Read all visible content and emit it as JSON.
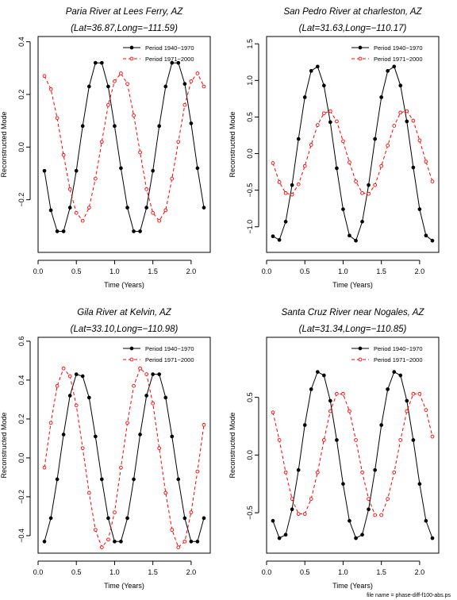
{
  "footer_text": "file name = phase-diff-f100-abs.ps",
  "colors": {
    "series1": "#000000",
    "series2": "#ff0000",
    "axis": "#000000"
  },
  "chart_data": [
    {
      "type": "line",
      "title": "Paria River at Lees Ferry, AZ",
      "subtitle": "(Lat=36.87,Long=−111.59)",
      "xlabel": "Time (Years)",
      "ylabel": "Reconstructed Mode",
      "xlim": [
        0,
        2.25
      ],
      "ylim": [
        -0.4,
        0.42
      ],
      "xticks": [
        0.0,
        0.5,
        1.0,
        1.5,
        2.0
      ],
      "xtick_labels": [
        "0.0",
        "0.5",
        "1.0",
        "1.5",
        "2.0"
      ],
      "yticks": [
        -0.2,
        0.0,
        0.2,
        0.4
      ],
      "ytick_labels": [
        "−0.2",
        "0.0",
        "0.2",
        "0.4"
      ],
      "legend": "top-right",
      "grid": false,
      "x": [
        0.083,
        0.167,
        0.25,
        0.333,
        0.417,
        0.5,
        0.583,
        0.667,
        0.75,
        0.833,
        0.917,
        1.0,
        1.083,
        1.167,
        1.25,
        1.333,
        1.417,
        1.5,
        1.583,
        1.667,
        1.75,
        1.833,
        1.917,
        2.0,
        2.083,
        2.167
      ],
      "series": [
        {
          "name": "Period 1940−1970",
          "style": "solid",
          "marker": "filled-circle",
          "values": [
            -0.09,
            -0.24,
            -0.32,
            -0.32,
            -0.23,
            -0.09,
            0.08,
            0.23,
            0.32,
            0.32,
            0.23,
            0.08,
            -0.08,
            -0.23,
            -0.32,
            -0.32,
            -0.23,
            -0.09,
            0.08,
            0.23,
            0.32,
            0.32,
            0.24,
            0.09,
            -0.08,
            -0.23
          ]
        },
        {
          "name": "Period 1971−2000",
          "style": "dashed",
          "marker": "open-circle",
          "values": [
            0.27,
            0.22,
            0.11,
            -0.03,
            -0.16,
            -0.25,
            -0.28,
            -0.23,
            -0.12,
            0.02,
            0.16,
            0.25,
            0.28,
            0.24,
            0.12,
            -0.02,
            -0.16,
            -0.25,
            -0.28,
            -0.24,
            -0.12,
            0.02,
            0.16,
            0.25,
            0.28,
            0.23
          ]
        }
      ]
    },
    {
      "type": "line",
      "title": "San Pedro River at charleston, AZ",
      "subtitle": "(Lat=31.63,Long=−110.17)",
      "xlabel": "Time (Years)",
      "ylabel": "Reconstructed Mode",
      "xlim": [
        0,
        2.25
      ],
      "ylim": [
        -1.35,
        1.6
      ],
      "xticks": [
        0.0,
        0.5,
        1.0,
        1.5,
        2.0
      ],
      "xtick_labels": [
        "0.0",
        "0.5",
        "1.0",
        "1.5",
        "2.0"
      ],
      "yticks": [
        -1.0,
        -0.5,
        0.0,
        0.5,
        1.0,
        1.5
      ],
      "ytick_labels": [
        "−1.0",
        "−0.5",
        "0.0",
        "0.5",
        "1.0",
        "1.5"
      ],
      "legend": "top-right",
      "grid": false,
      "x": [
        0.083,
        0.167,
        0.25,
        0.333,
        0.417,
        0.5,
        0.583,
        0.667,
        0.75,
        0.833,
        0.917,
        1.0,
        1.083,
        1.167,
        1.25,
        1.333,
        1.417,
        1.5,
        1.583,
        1.667,
        1.75,
        1.833,
        1.917,
        2.0,
        2.083,
        2.167
      ],
      "series": [
        {
          "name": "Period 1940−1970",
          "style": "solid",
          "marker": "filled-circle",
          "values": [
            -1.13,
            -1.18,
            -0.93,
            -0.43,
            0.2,
            0.77,
            1.13,
            1.19,
            0.93,
            0.43,
            -0.2,
            -0.76,
            -1.12,
            -1.19,
            -0.93,
            -0.43,
            0.2,
            0.77,
            1.13,
            1.19,
            0.93,
            0.44,
            -0.19,
            -0.76,
            -1.12,
            -1.19
          ]
        },
        {
          "name": "Period 1971−2000",
          "style": "dashed",
          "marker": "open-circle",
          "values": [
            -0.13,
            -0.39,
            -0.54,
            -0.56,
            -0.42,
            -0.17,
            0.12,
            0.39,
            0.55,
            0.58,
            0.44,
            0.17,
            -0.12,
            -0.38,
            -0.54,
            -0.55,
            -0.43,
            -0.17,
            0.11,
            0.38,
            0.56,
            0.58,
            0.45,
            0.18,
            -0.11,
            -0.38
          ]
        }
      ]
    },
    {
      "type": "line",
      "title": "Gila River at Kelvin, AZ",
      "subtitle": "(Lat=33.10,Long=−110.98)",
      "xlabel": "Time (Years)",
      "ylabel": "Reconstructed Mode",
      "xlim": [
        0,
        2.25
      ],
      "ylim": [
        -0.49,
        0.62
      ],
      "xticks": [
        0.0,
        0.5,
        1.0,
        1.5,
        2.0
      ],
      "xtick_labels": [
        "0.0",
        "0.5",
        "1.0",
        "1.5",
        "2.0"
      ],
      "yticks": [
        -0.4,
        -0.2,
        0.0,
        0.2,
        0.4,
        0.6
      ],
      "ytick_labels": [
        "−0.4",
        "−0.2",
        "0.0",
        "0.2",
        "0.4",
        "0.6"
      ],
      "legend": "top-right",
      "grid": false,
      "x": [
        0.083,
        0.167,
        0.25,
        0.333,
        0.417,
        0.5,
        0.583,
        0.667,
        0.75,
        0.833,
        0.917,
        1.0,
        1.083,
        1.167,
        1.25,
        1.333,
        1.417,
        1.5,
        1.583,
        1.667,
        1.75,
        1.833,
        1.917,
        2.0,
        2.083,
        2.167
      ],
      "series": [
        {
          "name": "Period 1940−1970",
          "style": "solid",
          "marker": "filled-circle",
          "values": [
            -0.43,
            -0.31,
            -0.11,
            0.12,
            0.32,
            0.43,
            0.42,
            0.31,
            0.11,
            -0.11,
            -0.31,
            -0.43,
            -0.43,
            -0.31,
            -0.11,
            0.12,
            0.32,
            0.43,
            0.43,
            0.31,
            0.11,
            -0.11,
            -0.31,
            -0.43,
            -0.43,
            -0.31
          ]
        },
        {
          "name": "Period 1971−2000",
          "style": "dashed",
          "marker": "open-circle",
          "values": [
            -0.05,
            0.18,
            0.37,
            0.46,
            0.42,
            0.27,
            0.05,
            -0.18,
            -0.37,
            -0.46,
            -0.42,
            -0.28,
            -0.05,
            0.18,
            0.37,
            0.46,
            0.43,
            0.28,
            0.05,
            -0.18,
            -0.37,
            -0.46,
            -0.43,
            -0.28,
            -0.07,
            0.17
          ]
        }
      ]
    },
    {
      "type": "line",
      "title": "Santa Cruz River near Nogales, AZ",
      "subtitle": "(Lat=31.34,Long=−110.85)",
      "xlabel": "Time (Years)",
      "ylabel": "Reconstructed Mode",
      "xlim": [
        0,
        2.25
      ],
      "ylim": [
        -0.85,
        1.02
      ],
      "xticks": [
        0.0,
        0.5,
        1.0,
        1.5,
        2.0
      ],
      "xtick_labels": [
        "0.0",
        "0.5",
        "1.0",
        "1.5",
        "2.0"
      ],
      "yticks": [
        -0.5,
        0.0,
        0.5
      ],
      "ytick_labels": [
        "−0.5",
        "0.0",
        "0.5"
      ],
      "legend": "top-right",
      "grid": false,
      "x": [
        0.083,
        0.167,
        0.25,
        0.333,
        0.417,
        0.5,
        0.583,
        0.667,
        0.75,
        0.833,
        0.917,
        1.0,
        1.083,
        1.167,
        1.25,
        1.333,
        1.417,
        1.5,
        1.583,
        1.667,
        1.75,
        1.833,
        1.917,
        2.0,
        2.083,
        2.167
      ],
      "series": [
        {
          "name": "Period 1940−1970",
          "style": "solid",
          "marker": "filled-circle",
          "values": [
            -0.57,
            -0.72,
            -0.69,
            -0.47,
            -0.13,
            0.26,
            0.57,
            0.72,
            0.69,
            0.47,
            0.13,
            -0.25,
            -0.57,
            -0.72,
            -0.69,
            -0.47,
            -0.13,
            0.26,
            0.57,
            0.72,
            0.69,
            0.47,
            0.13,
            -0.25,
            -0.57,
            -0.72
          ]
        },
        {
          "name": "Period 1971−2000",
          "style": "dashed",
          "marker": "open-circle",
          "values": [
            0.37,
            0.13,
            -0.15,
            -0.38,
            -0.51,
            -0.51,
            -0.38,
            -0.15,
            0.13,
            0.38,
            0.53,
            0.53,
            0.38,
            0.13,
            -0.15,
            -0.38,
            -0.52,
            -0.52,
            -0.38,
            -0.15,
            0.13,
            0.38,
            0.53,
            0.53,
            0.39,
            0.16
          ]
        }
      ]
    }
  ]
}
